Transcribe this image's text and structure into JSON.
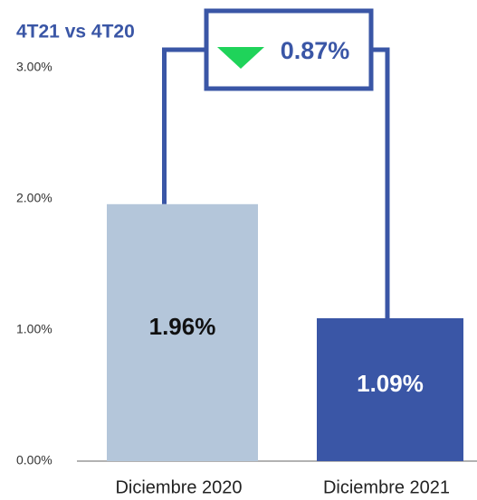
{
  "chart_data": {
    "type": "bar",
    "title": "4T21 vs 4T20",
    "categories": [
      "Diciembre 2020",
      "Diciembre 2021"
    ],
    "values": [
      1.96,
      1.09
    ],
    "value_labels": [
      "1.96%",
      "1.09%"
    ],
    "colors": [
      "#b4c6da",
      "#3a56a6"
    ],
    "label_colors": [
      "#111111",
      "#ffffff"
    ],
    "annotation": "0.87%",
    "annotation_color": "#3a56a6",
    "marker_color": "#1fd35a",
    "ylim": [
      0,
      3
    ],
    "yticks": [
      {
        "value": 0,
        "label": "0.00%"
      },
      {
        "value": 1,
        "label": "1.00%"
      },
      {
        "value": 2,
        "label": "2.00%"
      },
      {
        "value": 3,
        "label": "3.00%"
      }
    ]
  }
}
